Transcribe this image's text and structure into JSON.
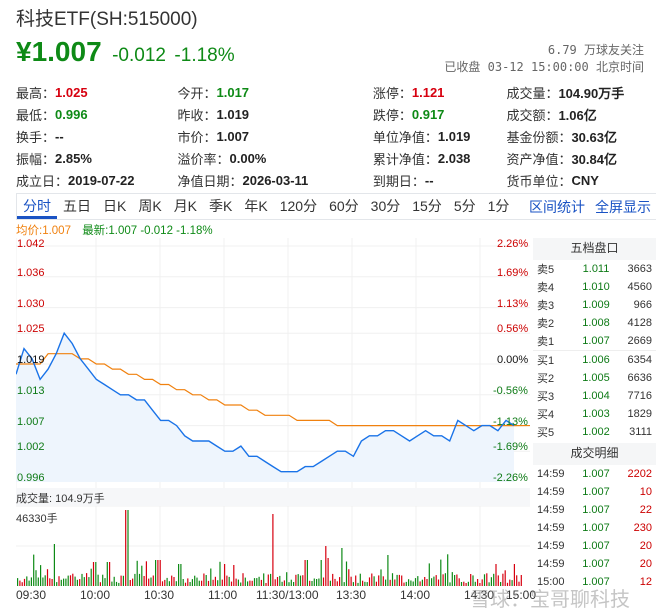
{
  "header": {
    "title": "科技ETF(SH:515000)",
    "price": "¥1.007",
    "change": "-0.012",
    "change_pct": "-1.18%",
    "followers": "6.79 万球友关注",
    "status": "已收盘 03-12 15:00:00 北京时间"
  },
  "stats": [
    [
      {
        "label": "最高：",
        "value": "1.025",
        "color": "red"
      },
      {
        "label": "今开：",
        "value": "1.017",
        "color": "green"
      },
      {
        "label": "涨停：",
        "value": "1.121",
        "color": "red"
      },
      {
        "label": "成交量：",
        "value": "104.90万手",
        "color": ""
      }
    ],
    [
      {
        "label": "最低：",
        "value": "0.996",
        "color": "green"
      },
      {
        "label": "昨收：",
        "value": "1.019",
        "color": ""
      },
      {
        "label": "跌停：",
        "value": "0.917",
        "color": "green"
      },
      {
        "label": "成交额：",
        "value": "1.06亿",
        "color": ""
      }
    ],
    [
      {
        "label": "换手：",
        "value": "--",
        "color": ""
      },
      {
        "label": "市价：",
        "value": "1.007",
        "color": ""
      },
      {
        "label": "单位净值：",
        "value": "1.019",
        "color": ""
      },
      {
        "label": "基金份额：",
        "value": "30.63亿",
        "color": ""
      }
    ],
    [
      {
        "label": "振幅：",
        "value": "2.85%",
        "color": ""
      },
      {
        "label": "溢价率：",
        "value": "0.00%",
        "color": ""
      },
      {
        "label": "累计净值：",
        "value": "2.038",
        "color": ""
      },
      {
        "label": "资产净值：",
        "value": "30.84亿",
        "color": ""
      }
    ],
    [
      {
        "label": "成立日：",
        "value": "2019-07-22",
        "color": ""
      },
      {
        "label": "净值日期：",
        "value": "2026-03-11",
        "color": ""
      },
      {
        "label": "到期日：",
        "value": "--",
        "color": ""
      },
      {
        "label": "货币单位：",
        "value": "CNY",
        "color": ""
      }
    ]
  ],
  "tabs": [
    "分时",
    "五日",
    "日K",
    "周K",
    "月K",
    "季K",
    "年K",
    "120分",
    "60分",
    "30分",
    "15分",
    "5分",
    "1分"
  ],
  "active_tab": "分时",
  "tab_links": [
    "区间统计",
    "全屏显示"
  ],
  "legend": {
    "avg": "均价:1.007",
    "latest": "最新:1.007 -0.012 -1.18%"
  },
  "volume_label": "成交量: 104.9万手",
  "volume_max": "46330手",
  "watermark": "雪球：宝哥聊科技",
  "orderbook": {
    "title": "五档盘口",
    "asks": [
      {
        "label": "卖5",
        "price": "1.011",
        "qty": "3663"
      },
      {
        "label": "卖4",
        "price": "1.010",
        "qty": "4560"
      },
      {
        "label": "卖3",
        "price": "1.009",
        "qty": "966"
      },
      {
        "label": "卖2",
        "price": "1.008",
        "qty": "4128"
      },
      {
        "label": "卖1",
        "price": "1.007",
        "qty": "2669"
      }
    ],
    "bids": [
      {
        "label": "买1",
        "price": "1.006",
        "qty": "6354"
      },
      {
        "label": "买2",
        "price": "1.005",
        "qty": "6636"
      },
      {
        "label": "买3",
        "price": "1.004",
        "qty": "7716"
      },
      {
        "label": "买4",
        "price": "1.003",
        "qty": "1829"
      },
      {
        "label": "买5",
        "price": "1.002",
        "qty": "3111"
      }
    ]
  },
  "trades": {
    "title": "成交明细",
    "rows": [
      {
        "time": "14:59",
        "price": "1.007",
        "qty": "2202"
      },
      {
        "time": "14:59",
        "price": "1.007",
        "qty": "10"
      },
      {
        "time": "14:59",
        "price": "1.007",
        "qty": "22"
      },
      {
        "time": "14:59",
        "price": "1.007",
        "qty": "230"
      },
      {
        "time": "14:59",
        "price": "1.007",
        "qty": "20"
      },
      {
        "time": "14:59",
        "price": "1.007",
        "qty": "20"
      },
      {
        "time": "15:00",
        "price": "1.007",
        "qty": "12"
      }
    ]
  },
  "colors": {
    "up": "#d7000f",
    "down": "#0e8a16",
    "price_line": "#1a73e8",
    "avg_line": "#f0810f",
    "accent": "#1a53c4"
  },
  "chart_data": {
    "type": "line",
    "title": "分时",
    "prev_close": 1.019,
    "ylim": [
      0.996,
      1.042
    ],
    "y_ticks_left": [
      "1.042",
      "1.036",
      "1.030",
      "1.025",
      "1.019",
      "1.013",
      "1.007",
      "1.002",
      "0.996"
    ],
    "y_ticks_right": [
      "2.26%",
      "1.69%",
      "1.13%",
      "0.56%",
      "0.00%",
      "-0.56%",
      "-1.13%",
      "-1.69%",
      "-2.26%"
    ],
    "x_ticks": [
      "09:30",
      "10:00",
      "10:30",
      "11:00",
      "11:30/13:00",
      "13:30",
      "14:00",
      "14:30",
      "15:00"
    ],
    "series": [
      {
        "name": "最新",
        "values": [
          1.017,
          1.022,
          1.02,
          1.016,
          1.018,
          1.021,
          1.025,
          1.023,
          1.02,
          1.018,
          1.016,
          1.015,
          1.014,
          1.013,
          1.013,
          1.012,
          1.012,
          1.01,
          1.008,
          1.008,
          1.007,
          1.005,
          1.004,
          1.004,
          1.004,
          1.003,
          1.002,
          1.002,
          1.003,
          1.001,
          1.001,
          1.0,
          0.999,
          0.998,
          0.998,
          0.998,
          0.999,
          0.999,
          1.0,
          1.001,
          1.002,
          1.002,
          1.001,
          1.004,
          1.005,
          1.005,
          1.006,
          1.006,
          1.005,
          1.004,
          1.005,
          1.006,
          1.005,
          1.005,
          1.004,
          1.008,
          1.007,
          1.006,
          1.007,
          1.007,
          1.006,
          1.008,
          1.007
        ]
      },
      {
        "name": "均价",
        "values": [
          1.019,
          1.019,
          1.019,
          1.019,
          1.021,
          1.021,
          1.021,
          1.021,
          1.02,
          1.02,
          1.019,
          1.019,
          1.018,
          1.018,
          1.017,
          1.017,
          1.016,
          1.016,
          1.015,
          1.015,
          1.014,
          1.014,
          1.013,
          1.013,
          1.012,
          1.012,
          1.011,
          1.011,
          1.011,
          1.01,
          1.01,
          1.009,
          1.009,
          1.009,
          1.009,
          1.008,
          1.008,
          1.008,
          1.008,
          1.008,
          1.007,
          1.007,
          1.007,
          1.007,
          1.007,
          1.007,
          1.007,
          1.007,
          1.007,
          1.007,
          1.007,
          1.007,
          1.007,
          1.007,
          1.007,
          1.007,
          1.007,
          1.007,
          1.007,
          1.007,
          1.007,
          1.007,
          1.007
        ]
      }
    ],
    "volume": {
      "label": "成交量: 104.9万手",
      "max": "46330手"
    }
  }
}
